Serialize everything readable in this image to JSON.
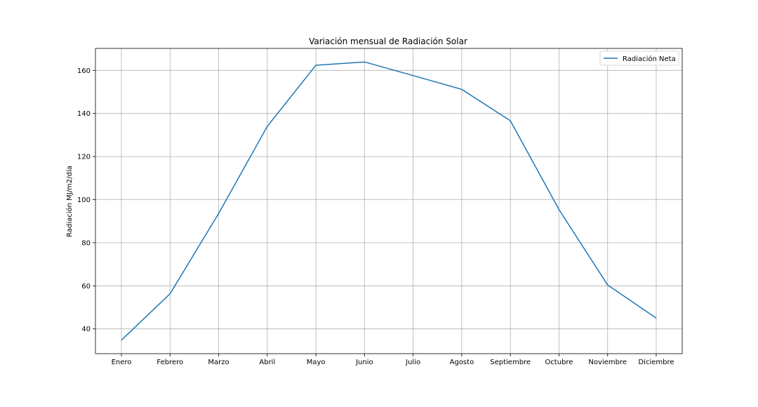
{
  "chart_data": {
    "type": "line",
    "title": "Variación mensual de Radiación Solar",
    "xlabel": "",
    "ylabel": "Radiación MJ/m2/día",
    "categories": [
      "Enero",
      "Febrero",
      "Marzo",
      "Abril",
      "Mayo",
      "Junio",
      "Julio",
      "Agosto",
      "Septiembre",
      "Octubre",
      "Noviembre",
      "Diciembre"
    ],
    "series": [
      {
        "name": "Radiación Neta",
        "color": "#1f77b4",
        "values": [
          34.8,
          56.3,
          93.6,
          134.0,
          162.4,
          163.9,
          157.6,
          151.2,
          136.6,
          95.4,
          60.4,
          45.0
        ]
      }
    ],
    "ylim": [
      28.5,
      170.2
    ],
    "yticks": [
      40,
      60,
      80,
      100,
      120,
      140,
      160
    ],
    "grid": true,
    "legend_position": "top-right"
  }
}
